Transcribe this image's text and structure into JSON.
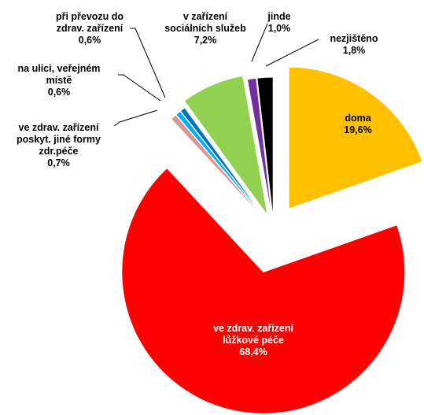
{
  "chart_data": {
    "type": "pie",
    "categories": [
      "doma",
      "ve zdrav. zařízení lůžkové péče",
      "ve zdrav. zařízení poskyt. jiné formy zdr.péče",
      "na ulici, veřejném místě",
      "při převozu do zdrav. zařízení",
      "v zařízení sociálních služeb",
      "jinde",
      "nezjištěno"
    ],
    "values": [
      19.6,
      68.4,
      0.7,
      0.6,
      0.6,
      7.2,
      1.0,
      1.8
    ],
    "value_labels": [
      "19,6%",
      "68,4%",
      "0,7%",
      "0,6%",
      "0,6%",
      "7,2%",
      "1,0%",
      "1,8%"
    ],
    "colors": [
      "#FFC000",
      "#FF0000",
      "#D99694",
      "#00B0F0",
      "#0070C0",
      "#92D050",
      "#7030A0",
      "#000000"
    ]
  }
}
